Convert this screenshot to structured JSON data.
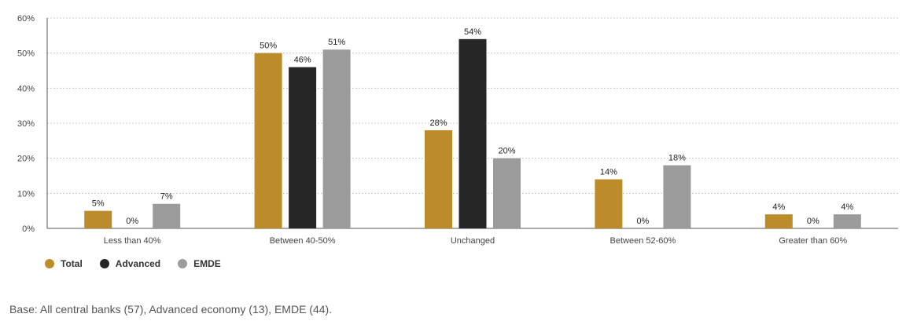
{
  "chart_data": {
    "type": "bar",
    "categories": [
      "Less than 40%",
      "Between 40-50%",
      "Unchanged",
      "Between 52-60%",
      "Greater than 60%"
    ],
    "series": [
      {
        "name": "Total",
        "color": "#bd8c2a",
        "values": [
          5,
          50,
          28,
          14,
          4
        ],
        "labels": [
          "5%",
          "50%",
          "28%",
          "14%",
          "4%"
        ]
      },
      {
        "name": "Advanced",
        "color": "#262626",
        "values": [
          0,
          46,
          54,
          0,
          0
        ],
        "labels": [
          "0%",
          "46%",
          "54%",
          "0%",
          "0%"
        ]
      },
      {
        "name": "EMDE",
        "color": "#9b9b9b",
        "values": [
          7,
          51,
          20,
          18,
          4
        ],
        "labels": [
          "7%",
          "51%",
          "20%",
          "18%",
          "4%"
        ]
      }
    ],
    "ylim": [
      0,
      60
    ],
    "yticks": [
      "0%",
      "10%",
      "20%",
      "30%",
      "40%",
      "50%",
      "60%"
    ],
    "grid": true,
    "legend_position": "bottom-left"
  },
  "footnote": "Base: All central banks (57), Advanced economy (13), EMDE (44)."
}
